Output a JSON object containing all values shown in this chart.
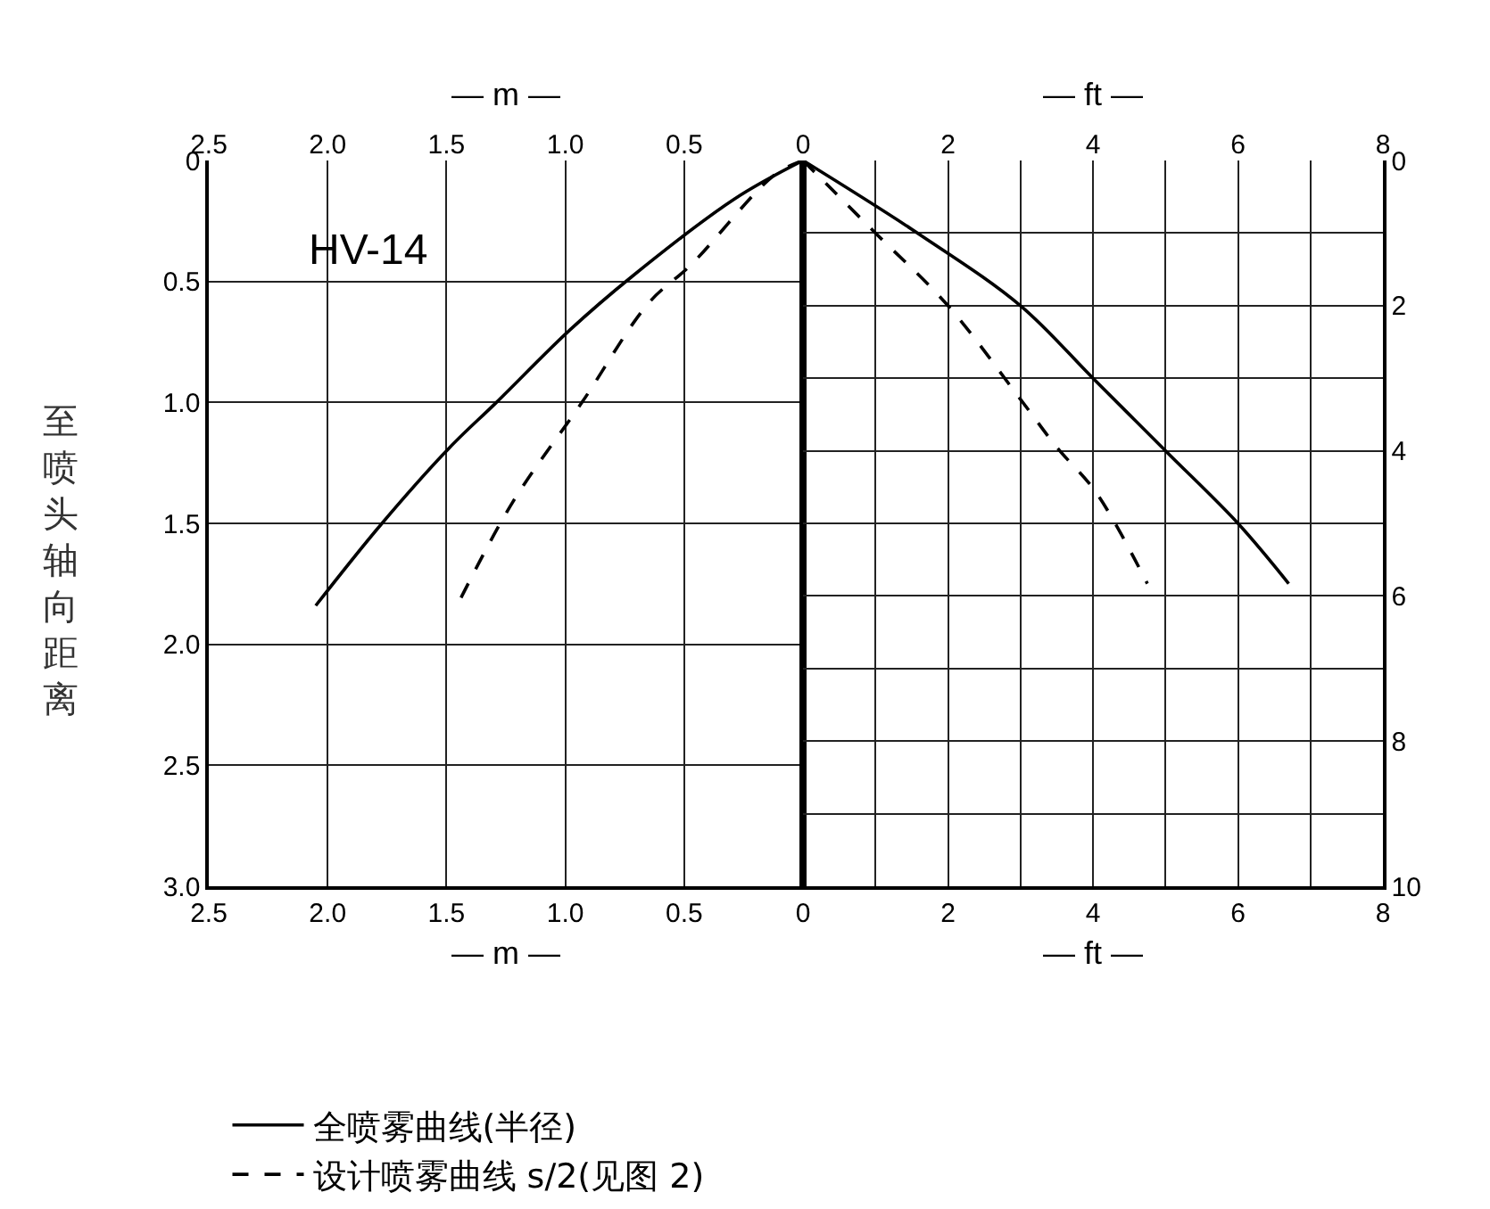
{
  "chart_data": [
    {
      "type": "line",
      "xlabel": "— m —",
      "x2label": "— m —",
      "ylabel": "至喷头轴向距离",
      "annotations": [
        "HV-14"
      ],
      "xlim": [
        2.5,
        0
      ],
      "xticks": [
        2.5,
        {
          "value": 2,
          "label": "2.0"
        },
        1.5,
        {
          "value": 1,
          "label": "1.0"
        },
        0.5,
        0
      ],
      "x2lim": [
        2.5,
        0
      ],
      "x2ticks": [
        2.5,
        {
          "value": 2,
          "label": "2.0"
        },
        1.5,
        {
          "value": 1,
          "label": "1.0"
        },
        0.5,
        0
      ],
      "ylim": [
        3,
        0
      ],
      "yticks": [
        0,
        0.5,
        {
          "value": 1,
          "label": "1.0"
        },
        1.5,
        {
          "value": 2,
          "label": "2.0"
        },
        2.5,
        {
          "value": 3,
          "label": "3.0"
        }
      ],
      "grid": true,
      "legend": "bottom",
      "series": [
        {
          "name": "全喷雾曲线(半径)",
          "color": "#000000",
          "line_style": "solid",
          "x": [
            0,
            0.29,
            0.72,
            0.98,
            1.29,
            1.49,
            1.78,
            2.05
          ],
          "values": [
            0,
            0.16,
            0.48,
            0.7,
            1.0,
            1.19,
            1.51,
            1.84
          ]
        },
        {
          "name": "设计喷雾曲线 s/2(见图 2)",
          "color": "#000000",
          "line_style": "dashed",
          "x": [
            0,
            0.12,
            0.47,
            0.65,
            0.93,
            1.22,
            1.44
          ],
          "values": [
            0,
            0.06,
            0.43,
            0.59,
            1.0,
            1.41,
            1.81
          ]
        }
      ]
    },
    {
      "type": "line",
      "xlabel": "— ft —",
      "x2label": "— ft —",
      "xlim": [
        0,
        8
      ],
      "xticks": [
        {
          "value": 0,
          "label": null
        },
        {
          "value": 1,
          "label": null
        },
        2,
        {
          "value": 3,
          "label": null
        },
        4,
        {
          "value": 5,
          "label": null
        },
        6,
        {
          "value": 7,
          "label": null
        },
        8
      ],
      "x2lim": [
        0,
        8
      ],
      "x2ticks": [
        {
          "value": 0,
          "label": null
        },
        {
          "value": 1,
          "label": null
        },
        2,
        {
          "value": 3,
          "label": null
        },
        4,
        {
          "value": 5,
          "label": null
        },
        6,
        {
          "value": 7,
          "label": null
        },
        8
      ],
      "y2lim": [
        10,
        0
      ],
      "y2ticks": [
        0,
        {
          "value": 1,
          "label": null
        },
        2,
        {
          "value": 3,
          "label": null
        },
        4,
        {
          "value": 5,
          "label": null
        },
        6,
        {
          "value": 7,
          "label": null
        },
        8,
        {
          "value": 9,
          "label": null
        },
        10
      ],
      "grid": true,
      "series": [
        {
          "color": "#000000",
          "line_style": "solid",
          "axis": "y2",
          "x": [
            0,
            1.64,
            3,
            4,
            5,
            6,
            6.7
          ],
          "values": [
            0,
            1.04,
            2,
            3,
            4,
            5,
            5.83
          ]
        },
        {
          "color": "#000000",
          "line_style": "dashed",
          "axis": "y2",
          "x": [
            0,
            0.4,
            1,
            2,
            3,
            3.5,
            4.04,
            4.75
          ],
          "values": [
            0,
            0.4,
            1,
            2,
            3.29,
            3.95,
            4.57,
            5.83
          ]
        }
      ]
    }
  ]
}
